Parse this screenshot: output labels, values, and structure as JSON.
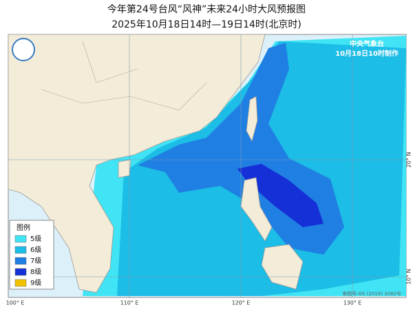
{
  "header": {
    "title": "今年第24号台风“风神”未来24小时大风预报图",
    "subtitle": "2025年10月18日14时—19日14时(北京时)"
  },
  "agency": {
    "name": "中央气象台",
    "issued": "10月18日10时制作"
  },
  "legend": {
    "title": "图例",
    "items": [
      {
        "label": "5级",
        "color": "#40e4f4"
      },
      {
        "label": "6级",
        "color": "#1cbde6"
      },
      {
        "label": "7级",
        "color": "#1f7fe3"
      },
      {
        "label": "8级",
        "color": "#1530d6"
      },
      {
        "label": "9级",
        "color": "#f2c200"
      }
    ]
  },
  "axes": {
    "longitudes": [
      "100° E",
      "110° E",
      "120° E",
      "130° E"
    ],
    "latitudes": [
      "20° N",
      "10° N"
    ]
  },
  "credit": "审图号:GS (2019) 3082号"
}
